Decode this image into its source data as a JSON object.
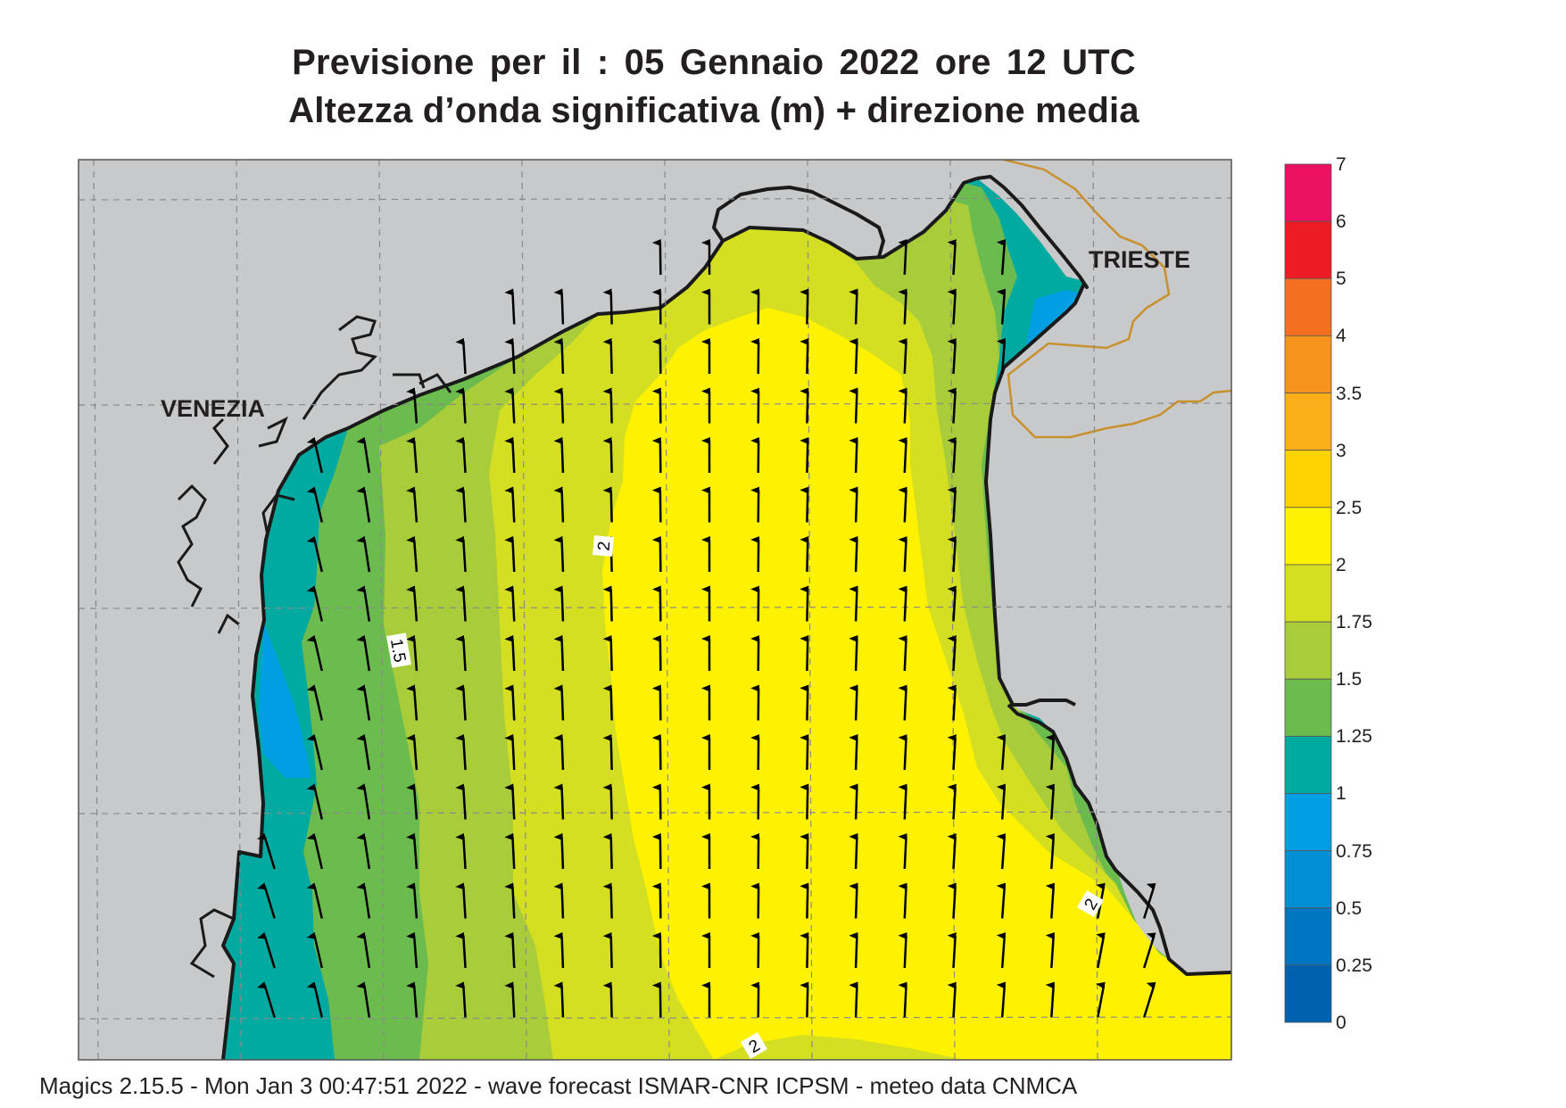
{
  "title": {
    "line1": "Previsione per il  :  05  Gennaio  2022   ore 12 UTC",
    "line2": "Altezza d’onda significativa (m) + direzione media"
  },
  "map": {
    "cities": {
      "venezia": "VENEZIA",
      "trieste": "TRIESTE"
    },
    "contour_labels": [
      "2",
      "1.5",
      "2",
      "2"
    ],
    "land_color": "#c8c9ca",
    "coast_color": "#1a1a1a",
    "border_color": "#c8912f",
    "grid": "on",
    "mean_direction_arrows": "northward",
    "wave_height_field": [
      {
        "band": "1 - 1.25",
        "color": "#00aaa0"
      },
      {
        "band": "0.75 - 1",
        "color": "#009fe3"
      },
      {
        "band": "1.25 - 1.5",
        "color": "#6cbb4f"
      },
      {
        "band": "1.5 - 1.75",
        "color": "#a8cc3a"
      },
      {
        "band": "1.75 - 2",
        "color": "#d4df22"
      },
      {
        "band": "2 - 2.5",
        "color": "#fff200"
      }
    ]
  },
  "colorbar": {
    "labels": [
      "7",
      "6",
      "5",
      "4",
      "3.5",
      "3",
      "2.5",
      "2",
      "1.75",
      "1.5",
      "1.25",
      "1",
      "0.75",
      "0.5",
      "0.25",
      "0"
    ],
    "colors": [
      "#ed1164",
      "#ed1c24",
      "#f37021",
      "#f7941d",
      "#fbb01a",
      "#ffd200",
      "#fff200",
      "#d4df22",
      "#a8cc3a",
      "#6cbb4f",
      "#00aaa0",
      "#009fe3",
      "#008fd4",
      "#0076c0",
      "#0061b0"
    ]
  },
  "footer": "Magics 2.15.5 - Mon Jan  3 00:47:51 2022 - wave forecast  ISMAR-CNR  ICPSM - meteo data   CNMCA"
}
